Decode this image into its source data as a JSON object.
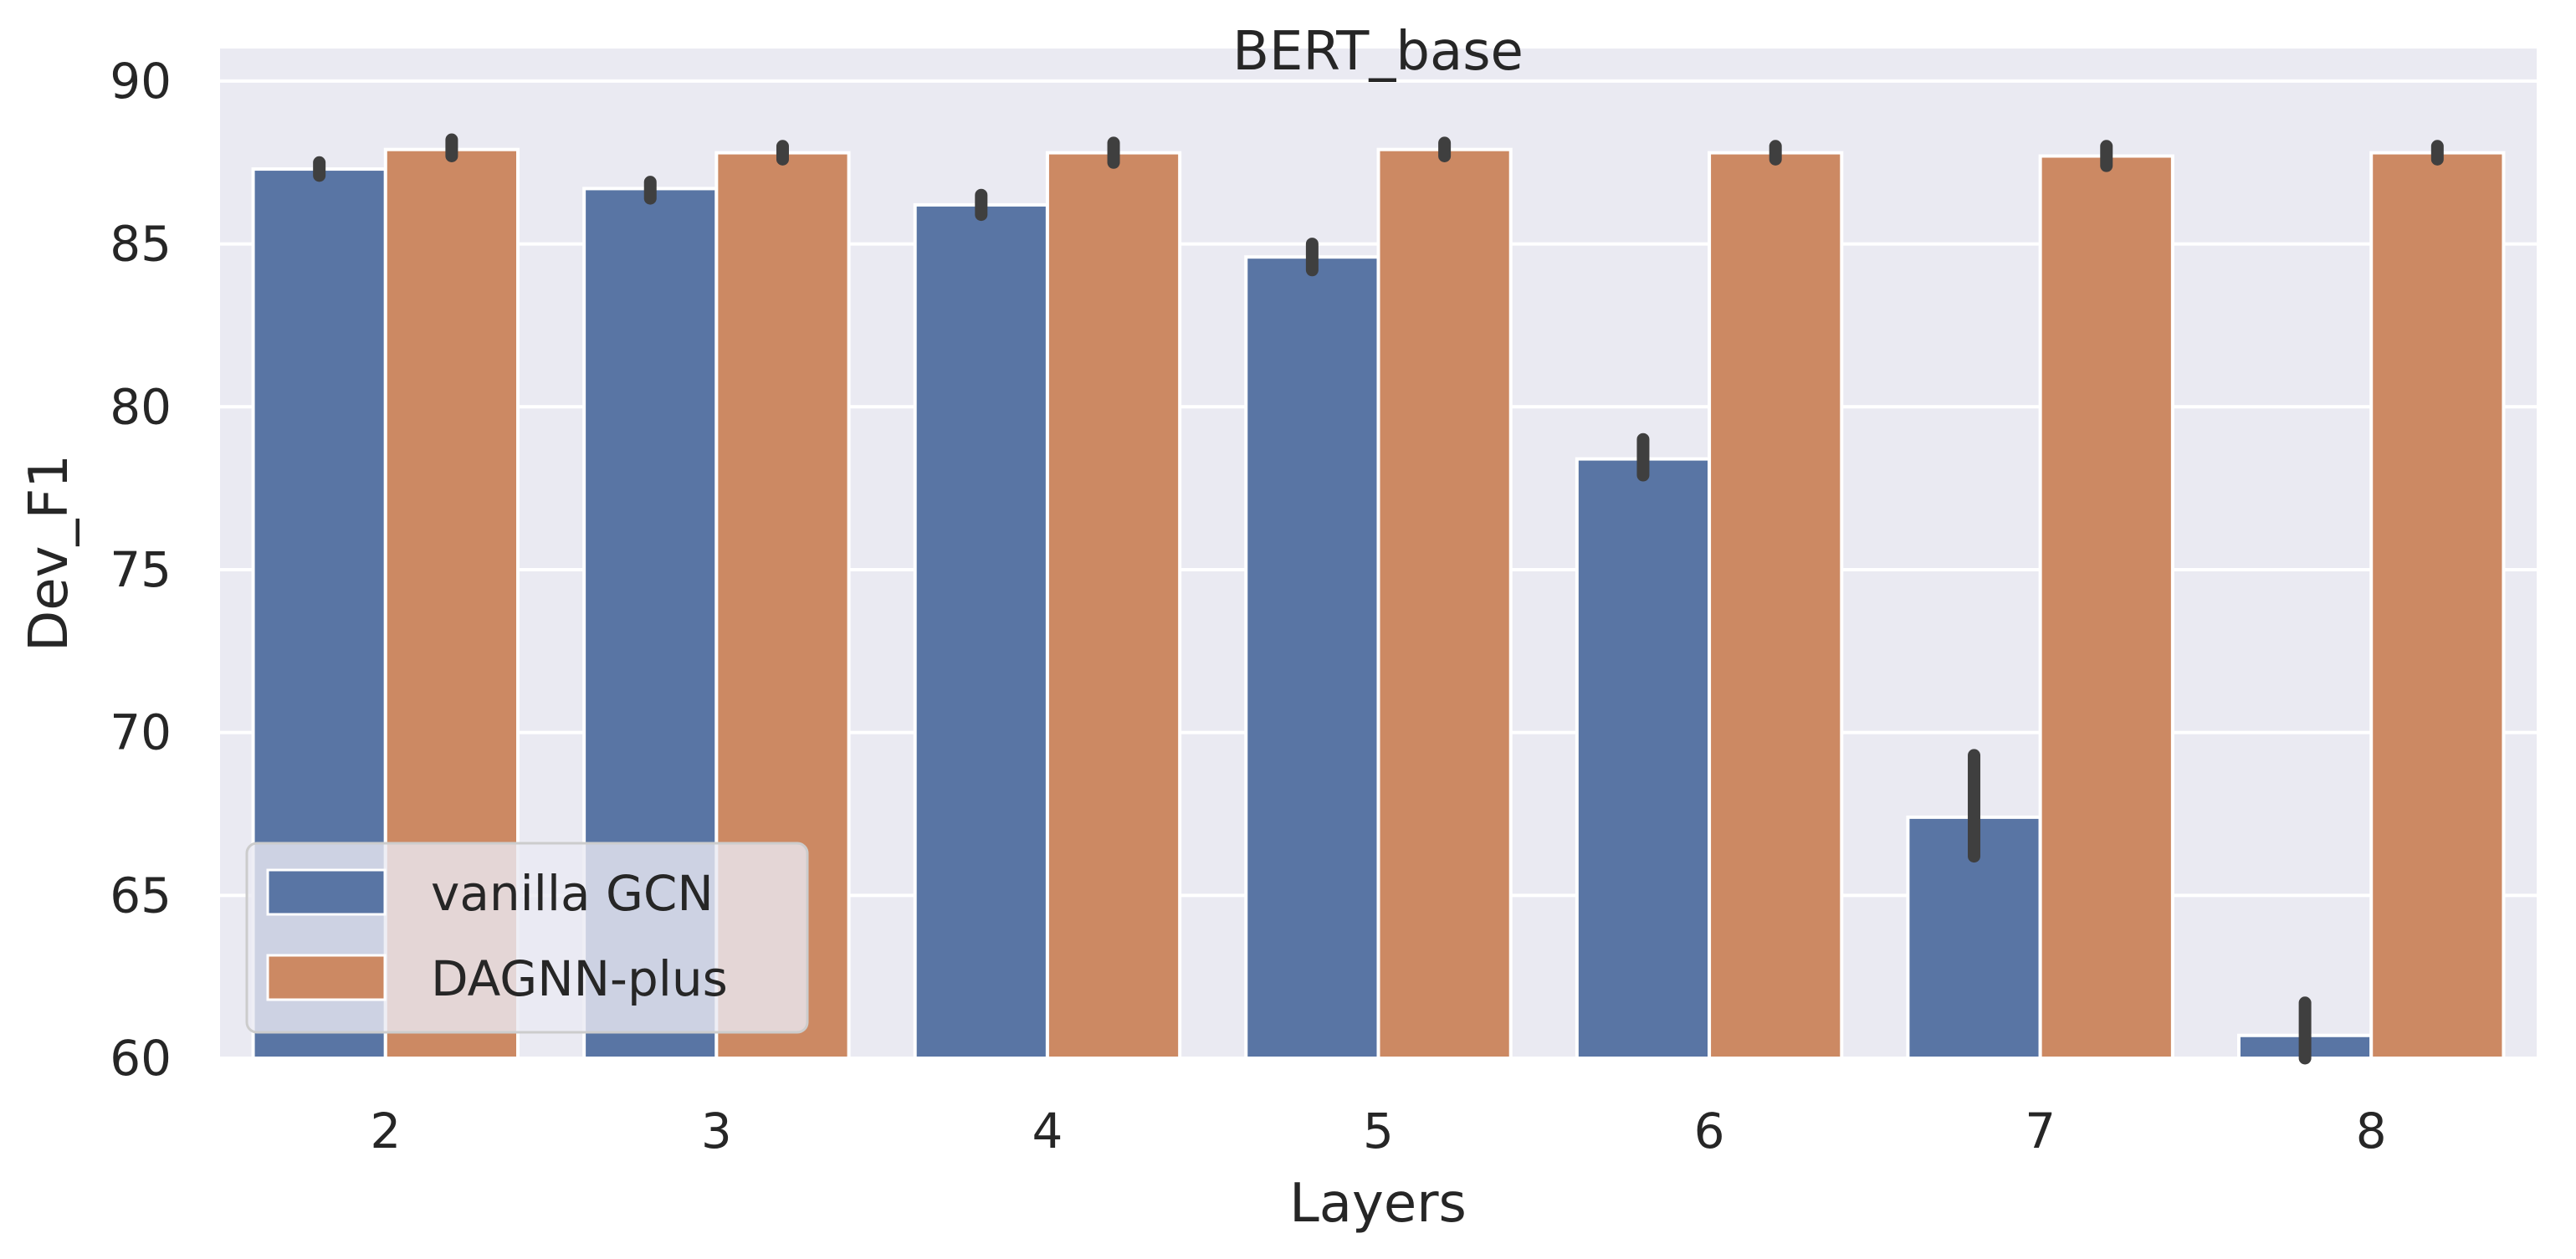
{
  "chart_data": {
    "type": "bar",
    "title": "BERT_base",
    "xlabel": "Layers",
    "ylabel": "Dev_F1",
    "ylim": [
      60,
      91
    ],
    "yticks": [
      60,
      65,
      70,
      75,
      80,
      85,
      90
    ],
    "categories": [
      "2",
      "3",
      "4",
      "5",
      "6",
      "7",
      "8"
    ],
    "grid": true,
    "legend_position": "lower-left",
    "series": [
      {
        "name": "vanilla GCN",
        "color": "#5975a4",
        "values": [
          87.3,
          86.7,
          86.2,
          84.6,
          78.4,
          67.4,
          60.7
        ],
        "err_low": [
          87.1,
          86.4,
          85.9,
          84.2,
          77.9,
          66.2,
          60.0
        ],
        "err_high": [
          87.5,
          86.9,
          86.5,
          85.0,
          79.0,
          69.3,
          61.7
        ]
      },
      {
        "name": "DAGNN-plus",
        "color": "#cc8963",
        "values": [
          87.9,
          87.8,
          87.8,
          87.9,
          87.8,
          87.7,
          87.8
        ],
        "err_low": [
          87.7,
          87.6,
          87.5,
          87.7,
          87.6,
          87.4,
          87.6
        ],
        "err_high": [
          88.2,
          88.0,
          88.1,
          88.1,
          88.0,
          88.0,
          88.0
        ]
      }
    ]
  }
}
